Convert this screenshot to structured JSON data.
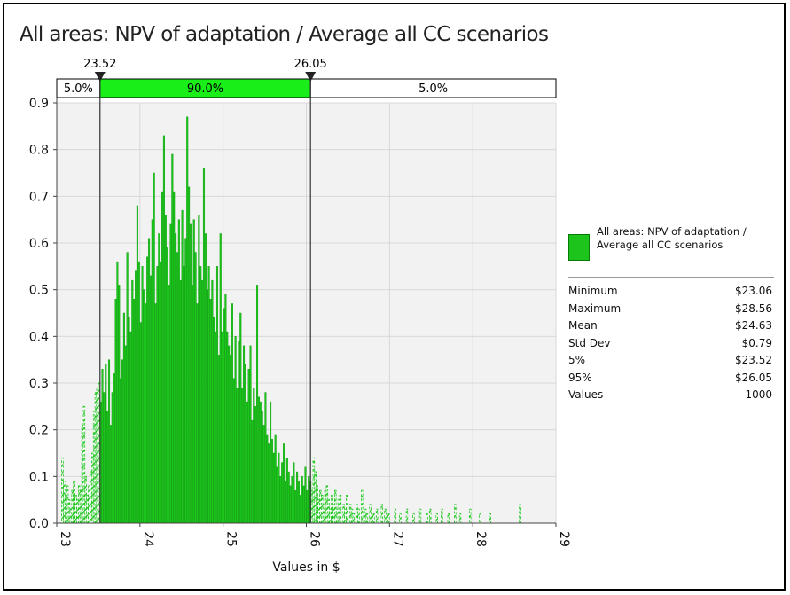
{
  "chart_data": {
    "type": "histogram",
    "title": "All areas: NPV of adaptation / Average all CC scenarios",
    "xlabel": "Values in $",
    "ylabel": "",
    "xlim": [
      23,
      29
    ],
    "ylim": [
      0,
      0.9
    ],
    "x_ticks": [
      "23",
      "24",
      "25",
      "26",
      "27",
      "28",
      "29"
    ],
    "y_ticks": [
      "0.0",
      "0.1",
      "0.2",
      "0.3",
      "0.4",
      "0.5",
      "0.6",
      "0.7",
      "0.8",
      "0.9"
    ],
    "markers": {
      "left": {
        "value": 23.52,
        "label": "23.52"
      },
      "right": {
        "value": 26.05,
        "label": "26.05"
      }
    },
    "band": {
      "left_label": "5.0%",
      "mid_label": "90.0%",
      "right_label": "5.0%"
    },
    "colors": {
      "bar": "#1cc41c",
      "bar_edge": "#0e9a0e",
      "band": "#19ee19",
      "plot_bg": "#f2f2f2",
      "grid": "#d8d8d8"
    },
    "bar_width": 0.02,
    "bins": [
      [
        23.06,
        0.14
      ],
      [
        23.08,
        0.09
      ],
      [
        23.1,
        0.06
      ],
      [
        23.12,
        0.08
      ],
      [
        23.14,
        0.05
      ],
      [
        23.16,
        0.03
      ],
      [
        23.18,
        0.07
      ],
      [
        23.2,
        0.09
      ],
      [
        23.22,
        0.06
      ],
      [
        23.24,
        0.05
      ],
      [
        23.26,
        0.08
      ],
      [
        23.28,
        0.07
      ],
      [
        23.3,
        0.21
      ],
      [
        23.32,
        0.25
      ],
      [
        23.34,
        0.1
      ],
      [
        23.36,
        0.06
      ],
      [
        23.38,
        0.08
      ],
      [
        23.4,
        0.11
      ],
      [
        23.42,
        0.15
      ],
      [
        23.44,
        0.24
      ],
      [
        23.46,
        0.28
      ],
      [
        23.48,
        0.29
      ],
      [
        23.5,
        0.3
      ],
      [
        23.52,
        0.26
      ],
      [
        23.54,
        0.33
      ],
      [
        23.56,
        0.28
      ],
      [
        23.58,
        0.34
      ],
      [
        23.6,
        0.24
      ],
      [
        23.62,
        0.35
      ],
      [
        23.64,
        0.21
      ],
      [
        23.66,
        0.28
      ],
      [
        23.68,
        0.32
      ],
      [
        23.7,
        0.48
      ],
      [
        23.72,
        0.56
      ],
      [
        23.74,
        0.51
      ],
      [
        23.76,
        0.31
      ],
      [
        23.78,
        0.35
      ],
      [
        23.8,
        0.45
      ],
      [
        23.82,
        0.38
      ],
      [
        23.84,
        0.58
      ],
      [
        23.86,
        0.44
      ],
      [
        23.88,
        0.41
      ],
      [
        23.9,
        0.52
      ],
      [
        23.92,
        0.48
      ],
      [
        23.94,
        0.54
      ],
      [
        23.96,
        0.68
      ],
      [
        23.98,
        0.56
      ],
      [
        24.0,
        0.43
      ],
      [
        24.02,
        0.55
      ],
      [
        24.04,
        0.5
      ],
      [
        24.06,
        0.47
      ],
      [
        24.08,
        0.57
      ],
      [
        24.1,
        0.61
      ],
      [
        24.12,
        0.53
      ],
      [
        24.14,
        0.65
      ],
      [
        24.16,
        0.75
      ],
      [
        24.18,
        0.47
      ],
      [
        24.2,
        0.55
      ],
      [
        24.22,
        0.62
      ],
      [
        24.24,
        0.56
      ],
      [
        24.26,
        0.71
      ],
      [
        24.28,
        0.83
      ],
      [
        24.3,
        0.66
      ],
      [
        24.32,
        0.59
      ],
      [
        24.34,
        0.51
      ],
      [
        24.36,
        0.64
      ],
      [
        24.38,
        0.79
      ],
      [
        24.4,
        0.71
      ],
      [
        24.42,
        0.62
      ],
      [
        24.44,
        0.58
      ],
      [
        24.46,
        0.65
      ],
      [
        24.48,
        0.52
      ],
      [
        24.5,
        0.67
      ],
      [
        24.52,
        0.55
      ],
      [
        24.54,
        0.61
      ],
      [
        24.56,
        0.87
      ],
      [
        24.58,
        0.72
      ],
      [
        24.6,
        0.64
      ],
      [
        24.62,
        0.51
      ],
      [
        24.64,
        0.65
      ],
      [
        24.66,
        0.58
      ],
      [
        24.68,
        0.47
      ],
      [
        24.7,
        0.66
      ],
      [
        24.72,
        0.55
      ],
      [
        24.74,
        0.52
      ],
      [
        24.76,
        0.76
      ],
      [
        24.78,
        0.62
      ],
      [
        24.8,
        0.5
      ],
      [
        24.82,
        0.55
      ],
      [
        24.84,
        0.48
      ],
      [
        24.86,
        0.52
      ],
      [
        24.88,
        0.44
      ],
      [
        24.9,
        0.41
      ],
      [
        24.92,
        0.55
      ],
      [
        24.94,
        0.36
      ],
      [
        24.96,
        0.62
      ],
      [
        24.98,
        0.41
      ],
      [
        25.0,
        0.46
      ],
      [
        25.02,
        0.49
      ],
      [
        25.04,
        0.41
      ],
      [
        25.06,
        0.38
      ],
      [
        25.08,
        0.36
      ],
      [
        25.1,
        0.47
      ],
      [
        25.12,
        0.31
      ],
      [
        25.14,
        0.4
      ],
      [
        25.16,
        0.29
      ],
      [
        25.18,
        0.39
      ],
      [
        25.2,
        0.45
      ],
      [
        25.22,
        0.29
      ],
      [
        25.24,
        0.38
      ],
      [
        25.26,
        0.34
      ],
      [
        25.28,
        0.26
      ],
      [
        25.3,
        0.33
      ],
      [
        25.32,
        0.38
      ],
      [
        25.34,
        0.22
      ],
      [
        25.36,
        0.29
      ],
      [
        25.38,
        0.25
      ],
      [
        25.4,
        0.51
      ],
      [
        25.42,
        0.27
      ],
      [
        25.44,
        0.26
      ],
      [
        25.46,
        0.24
      ],
      [
        25.48,
        0.21
      ],
      [
        25.5,
        0.28
      ],
      [
        25.52,
        0.19
      ],
      [
        25.54,
        0.17
      ],
      [
        25.56,
        0.26
      ],
      [
        25.58,
        0.18
      ],
      [
        25.6,
        0.15
      ],
      [
        25.62,
        0.19
      ],
      [
        25.64,
        0.12
      ],
      [
        25.66,
        0.15
      ],
      [
        25.68,
        0.1
      ],
      [
        25.7,
        0.13
      ],
      [
        25.72,
        0.17
      ],
      [
        25.74,
        0.09
      ],
      [
        25.76,
        0.14
      ],
      [
        25.78,
        0.11
      ],
      [
        25.8,
        0.08
      ],
      [
        25.82,
        0.1
      ],
      [
        25.84,
        0.13
      ],
      [
        25.86,
        0.07
      ],
      [
        25.88,
        0.11
      ],
      [
        25.9,
        0.09
      ],
      [
        25.92,
        0.06
      ],
      [
        25.94,
        0.1
      ],
      [
        25.96,
        0.08
      ],
      [
        25.98,
        0.12
      ],
      [
        26.0,
        0.07
      ],
      [
        26.02,
        0.1
      ],
      [
        26.04,
        0.09
      ],
      [
        26.06,
        0.07
      ],
      [
        26.08,
        0.14
      ],
      [
        26.1,
        0.11
      ],
      [
        26.12,
        0.08
      ],
      [
        26.14,
        0.05
      ],
      [
        26.16,
        0.07
      ],
      [
        26.18,
        0.06
      ],
      [
        26.2,
        0.04
      ],
      [
        26.22,
        0.07
      ],
      [
        26.24,
        0.08
      ],
      [
        26.26,
        0.05
      ],
      [
        26.28,
        0.03
      ],
      [
        26.3,
        0.06
      ],
      [
        26.32,
        0.04
      ],
      [
        26.34,
        0.07
      ],
      [
        26.36,
        0.03
      ],
      [
        26.38,
        0.05
      ],
      [
        26.4,
        0.06
      ],
      [
        26.44,
        0.04
      ],
      [
        26.46,
        0.03
      ],
      [
        26.48,
        0.06
      ],
      [
        26.52,
        0.04
      ],
      [
        26.54,
        0.03
      ],
      [
        26.56,
        0.02
      ],
      [
        26.6,
        0.04
      ],
      [
        26.62,
        0.03
      ],
      [
        26.66,
        0.07
      ],
      [
        26.7,
        0.03
      ],
      [
        26.72,
        0.02
      ],
      [
        26.76,
        0.04
      ],
      [
        26.8,
        0.02
      ],
      [
        26.84,
        0.03
      ],
      [
        26.9,
        0.04
      ],
      [
        26.94,
        0.03
      ],
      [
        26.98,
        0.02
      ],
      [
        27.06,
        0.03
      ],
      [
        27.12,
        0.02
      ],
      [
        27.2,
        0.03
      ],
      [
        27.28,
        0.02
      ],
      [
        27.36,
        0.03
      ],
      [
        27.44,
        0.02
      ],
      [
        27.48,
        0.03
      ],
      [
        27.56,
        0.02
      ],
      [
        27.62,
        0.03
      ],
      [
        27.7,
        0.02
      ],
      [
        27.78,
        0.04
      ],
      [
        27.84,
        0.02
      ],
      [
        27.96,
        0.03
      ],
      [
        28.08,
        0.02
      ],
      [
        28.2,
        0.02
      ],
      [
        28.56,
        0.04
      ]
    ]
  },
  "legend": {
    "label": "All areas: NPV of adaptation / Average all CC scenarios"
  },
  "stats": [
    {
      "name": "Minimum",
      "value": "$23.06"
    },
    {
      "name": "Maximum",
      "value": "$28.56"
    },
    {
      "name": "Mean",
      "value": "$24.63"
    },
    {
      "name": "Std Dev",
      "value": "$0.79"
    },
    {
      "name": "5%",
      "value": "$23.52"
    },
    {
      "name": "95%",
      "value": "$26.05"
    },
    {
      "name": "Values",
      "value": "1000"
    }
  ]
}
